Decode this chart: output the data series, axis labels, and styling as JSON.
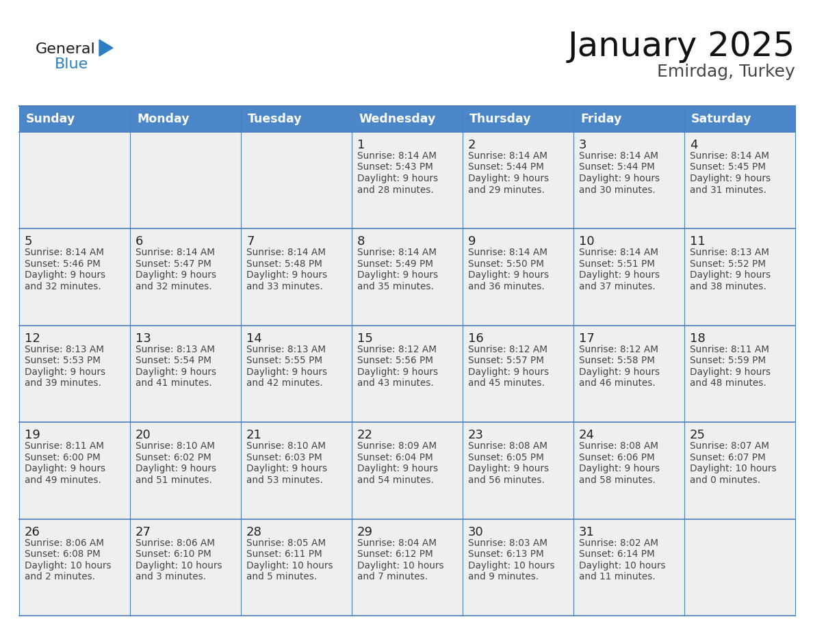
{
  "title": "January 2025",
  "subtitle": "Emirdag, Turkey",
  "days_of_week": [
    "Sunday",
    "Monday",
    "Tuesday",
    "Wednesday",
    "Thursday",
    "Friday",
    "Saturday"
  ],
  "header_bg": "#4A86C8",
  "header_text": "#FFFFFF",
  "cell_bg": "#EFEFEF",
  "border_color": "#4A7FBF",
  "text_color": "#333333",
  "day_num_color": "#222222",
  "calendar_data": [
    [
      null,
      null,
      null,
      {
        "day": 1,
        "sunrise": "8:14 AM",
        "sunset": "5:43 PM",
        "daylight": "9 hours and 28 minutes"
      },
      {
        "day": 2,
        "sunrise": "8:14 AM",
        "sunset": "5:44 PM",
        "daylight": "9 hours and 29 minutes"
      },
      {
        "day": 3,
        "sunrise": "8:14 AM",
        "sunset": "5:44 PM",
        "daylight": "9 hours and 30 minutes"
      },
      {
        "day": 4,
        "sunrise": "8:14 AM",
        "sunset": "5:45 PM",
        "daylight": "9 hours and 31 minutes"
      }
    ],
    [
      {
        "day": 5,
        "sunrise": "8:14 AM",
        "sunset": "5:46 PM",
        "daylight": "9 hours and 32 minutes"
      },
      {
        "day": 6,
        "sunrise": "8:14 AM",
        "sunset": "5:47 PM",
        "daylight": "9 hours and 32 minutes"
      },
      {
        "day": 7,
        "sunrise": "8:14 AM",
        "sunset": "5:48 PM",
        "daylight": "9 hours and 33 minutes"
      },
      {
        "day": 8,
        "sunrise": "8:14 AM",
        "sunset": "5:49 PM",
        "daylight": "9 hours and 35 minutes"
      },
      {
        "day": 9,
        "sunrise": "8:14 AM",
        "sunset": "5:50 PM",
        "daylight": "9 hours and 36 minutes"
      },
      {
        "day": 10,
        "sunrise": "8:14 AM",
        "sunset": "5:51 PM",
        "daylight": "9 hours and 37 minutes"
      },
      {
        "day": 11,
        "sunrise": "8:13 AM",
        "sunset": "5:52 PM",
        "daylight": "9 hours and 38 minutes"
      }
    ],
    [
      {
        "day": 12,
        "sunrise": "8:13 AM",
        "sunset": "5:53 PM",
        "daylight": "9 hours and 39 minutes"
      },
      {
        "day": 13,
        "sunrise": "8:13 AM",
        "sunset": "5:54 PM",
        "daylight": "9 hours and 41 minutes"
      },
      {
        "day": 14,
        "sunrise": "8:13 AM",
        "sunset": "5:55 PM",
        "daylight": "9 hours and 42 minutes"
      },
      {
        "day": 15,
        "sunrise": "8:12 AM",
        "sunset": "5:56 PM",
        "daylight": "9 hours and 43 minutes"
      },
      {
        "day": 16,
        "sunrise": "8:12 AM",
        "sunset": "5:57 PM",
        "daylight": "9 hours and 45 minutes"
      },
      {
        "day": 17,
        "sunrise": "8:12 AM",
        "sunset": "5:58 PM",
        "daylight": "9 hours and 46 minutes"
      },
      {
        "day": 18,
        "sunrise": "8:11 AM",
        "sunset": "5:59 PM",
        "daylight": "9 hours and 48 minutes"
      }
    ],
    [
      {
        "day": 19,
        "sunrise": "8:11 AM",
        "sunset": "6:00 PM",
        "daylight": "9 hours and 49 minutes"
      },
      {
        "day": 20,
        "sunrise": "8:10 AM",
        "sunset": "6:02 PM",
        "daylight": "9 hours and 51 minutes"
      },
      {
        "day": 21,
        "sunrise": "8:10 AM",
        "sunset": "6:03 PM",
        "daylight": "9 hours and 53 minutes"
      },
      {
        "day": 22,
        "sunrise": "8:09 AM",
        "sunset": "6:04 PM",
        "daylight": "9 hours and 54 minutes"
      },
      {
        "day": 23,
        "sunrise": "8:08 AM",
        "sunset": "6:05 PM",
        "daylight": "9 hours and 56 minutes"
      },
      {
        "day": 24,
        "sunrise": "8:08 AM",
        "sunset": "6:06 PM",
        "daylight": "9 hours and 58 minutes"
      },
      {
        "day": 25,
        "sunrise": "8:07 AM",
        "sunset": "6:07 PM",
        "daylight": "10 hours and 0 minutes"
      }
    ],
    [
      {
        "day": 26,
        "sunrise": "8:06 AM",
        "sunset": "6:08 PM",
        "daylight": "10 hours and 2 minutes"
      },
      {
        "day": 27,
        "sunrise": "8:06 AM",
        "sunset": "6:10 PM",
        "daylight": "10 hours and 3 minutes"
      },
      {
        "day": 28,
        "sunrise": "8:05 AM",
        "sunset": "6:11 PM",
        "daylight": "10 hours and 5 minutes"
      },
      {
        "day": 29,
        "sunrise": "8:04 AM",
        "sunset": "6:12 PM",
        "daylight": "10 hours and 7 minutes"
      },
      {
        "day": 30,
        "sunrise": "8:03 AM",
        "sunset": "6:13 PM",
        "daylight": "10 hours and 9 minutes"
      },
      {
        "day": 31,
        "sunrise": "8:02 AM",
        "sunset": "6:14 PM",
        "daylight": "10 hours and 11 minutes"
      },
      null
    ]
  ],
  "logo_general_color": "#1a1a1a",
  "logo_blue_color": "#2B7EC1",
  "logo_triangle_color": "#2B7EC1"
}
